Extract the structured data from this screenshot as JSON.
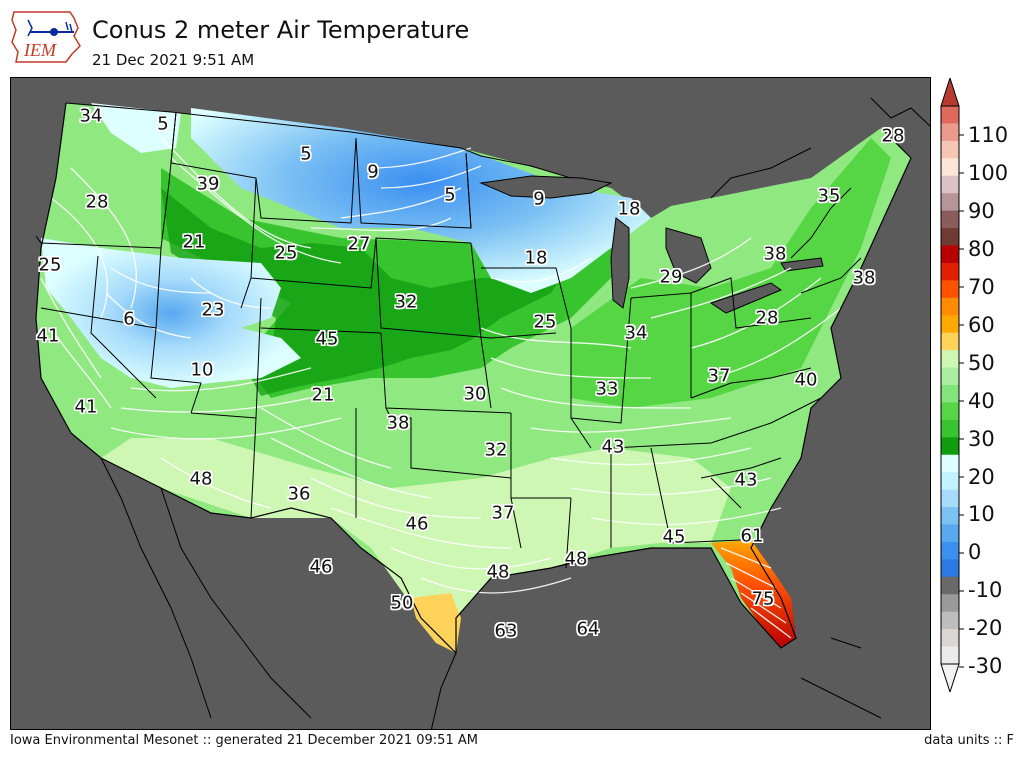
{
  "header": {
    "logo_text": "IEM",
    "title": "Conus 2 meter Air Temperature",
    "subtitle": "21 Dec 2021 9:51 AM"
  },
  "footer": {
    "left": "Iowa Environmental Mesonet :: generated 21 December 2021 09:51 AM",
    "right": "data units :: F"
  },
  "colorbar": {
    "ticks": [
      "110",
      "100",
      "90",
      "80",
      "70",
      "60",
      "50",
      "40",
      "30",
      "20",
      "10",
      "0",
      "-10",
      "-20",
      "-30"
    ],
    "colors_top_to_bottom": [
      "#e0695e",
      "#ea9b8e",
      "#f6c6b4",
      "#fde5d7",
      "#d9c3c6",
      "#b59598",
      "#8a5d5a",
      "#6e3c33",
      "#b80000",
      "#e02000",
      "#ff5200",
      "#ff8c00",
      "#ffa800",
      "#ffd35a",
      "#cdf7b2",
      "#aaeea0",
      "#82e47a",
      "#56d645",
      "#38c42f",
      "#109e10",
      "#ddffff",
      "#c2f2ff",
      "#a6dbfb",
      "#7cc1f4",
      "#57a8ef",
      "#3a8ff0",
      "#2c79e4",
      "#6a6a6a",
      "#9a9a9a",
      "#bdbdbd",
      "#dcd6d2",
      "#ebebeb"
    ]
  },
  "map_labels": [
    {
      "text": "34"
    },
    {
      "text": "5"
    },
    {
      "text": "5"
    },
    {
      "text": "9"
    },
    {
      "text": "28"
    },
    {
      "text": "39"
    },
    {
      "text": "5"
    },
    {
      "text": "9"
    },
    {
      "text": "18"
    },
    {
      "text": "35"
    },
    {
      "text": "28"
    },
    {
      "text": "21"
    },
    {
      "text": "27"
    },
    {
      "text": "25"
    },
    {
      "text": "25"
    },
    {
      "text": "18"
    },
    {
      "text": "38"
    },
    {
      "text": "29"
    },
    {
      "text": "6"
    },
    {
      "text": "23"
    },
    {
      "text": "32"
    },
    {
      "text": "38"
    },
    {
      "text": "41"
    },
    {
      "text": "45"
    },
    {
      "text": "25"
    },
    {
      "text": "34"
    },
    {
      "text": "28"
    },
    {
      "text": "10"
    },
    {
      "text": "33"
    },
    {
      "text": "37"
    },
    {
      "text": "40"
    },
    {
      "text": "41"
    },
    {
      "text": "21"
    },
    {
      "text": "30"
    },
    {
      "text": "38"
    },
    {
      "text": "43"
    },
    {
      "text": "32"
    },
    {
      "text": "48"
    },
    {
      "text": "43"
    },
    {
      "text": "36"
    },
    {
      "text": "46"
    },
    {
      "text": "37"
    },
    {
      "text": "61"
    },
    {
      "text": "45"
    },
    {
      "text": "46"
    },
    {
      "text": "48"
    },
    {
      "text": "48"
    },
    {
      "text": "50"
    },
    {
      "text": "75"
    },
    {
      "text": "63"
    },
    {
      "text": "64"
    }
  ]
}
